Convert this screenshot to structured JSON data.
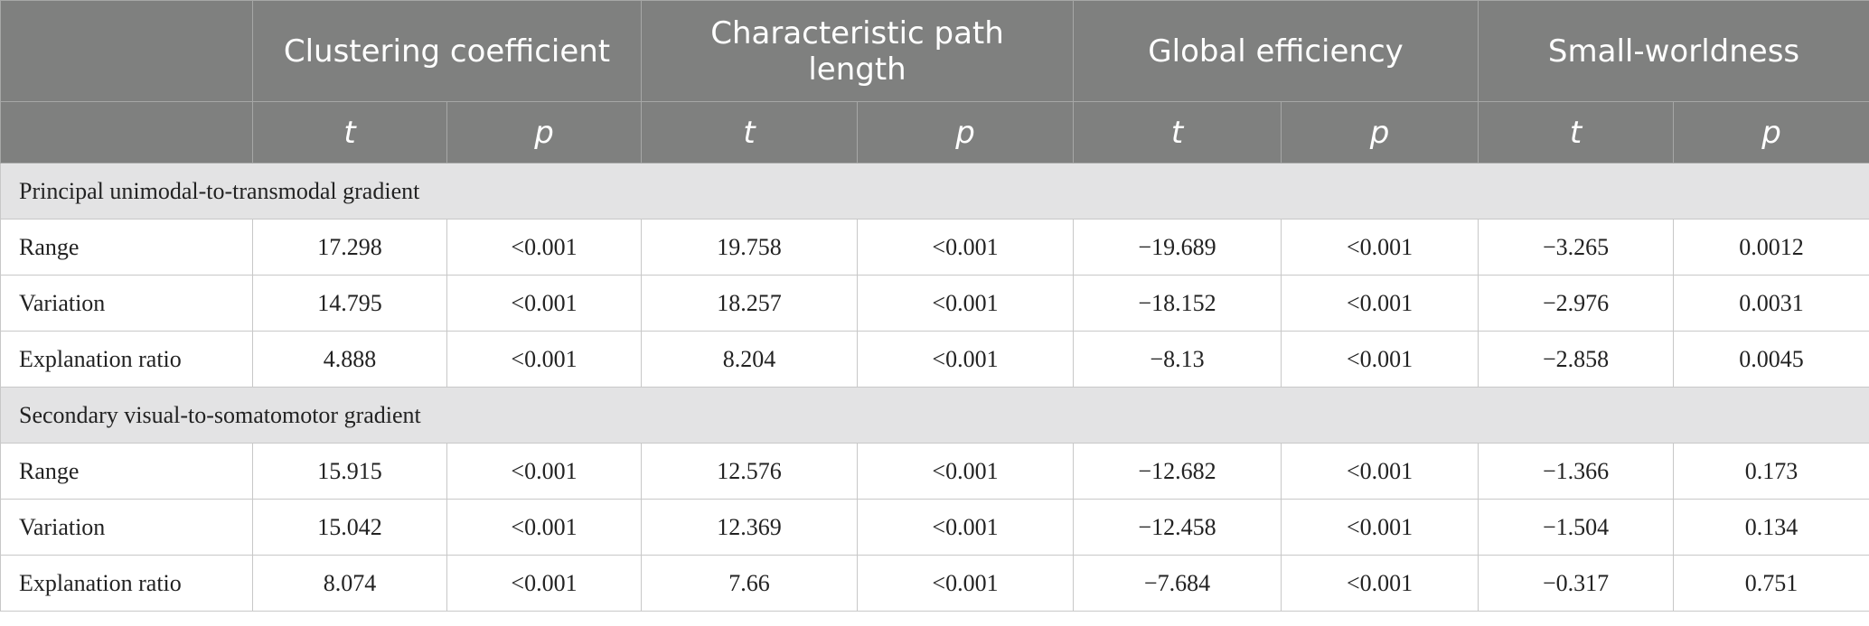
{
  "columns": {
    "groups": [
      "Clustering coefficient",
      "Characteristic path length",
      "Global efficiency",
      "Small-worldness"
    ],
    "t_label": "t",
    "p_label": "p"
  },
  "sections": [
    {
      "title": "Principal unimodal-to-transmodal gradient",
      "rows": [
        {
          "label": "Range",
          "values": [
            "17.298",
            "<0.001",
            "19.758",
            "<0.001",
            "−19.689",
            "<0.001",
            "−3.265",
            "0.0012"
          ]
        },
        {
          "label": "Variation",
          "values": [
            "14.795",
            "<0.001",
            "18.257",
            "<0.001",
            "−18.152",
            "<0.001",
            "−2.976",
            "0.0031"
          ]
        },
        {
          "label": "Explanation ratio",
          "values": [
            "4.888",
            "<0.001",
            "8.204",
            "<0.001",
            "−8.13",
            "<0.001",
            "−2.858",
            "0.0045"
          ]
        }
      ]
    },
    {
      "title": "Secondary visual-to-somatomotor gradient",
      "rows": [
        {
          "label": "Range",
          "values": [
            "15.915",
            "<0.001",
            "12.576",
            "<0.001",
            "−12.682",
            "<0.001",
            "−1.366",
            "0.173"
          ]
        },
        {
          "label": "Variation",
          "values": [
            "15.042",
            "<0.001",
            "12.369",
            "<0.001",
            "−12.458",
            "<0.001",
            "−1.504",
            "0.134"
          ]
        },
        {
          "label": "Explanation ratio",
          "values": [
            "8.074",
            "<0.001",
            "7.66",
            "<0.001",
            "−7.684",
            "<0.001",
            "−0.317",
            "0.751"
          ]
        }
      ]
    }
  ]
}
